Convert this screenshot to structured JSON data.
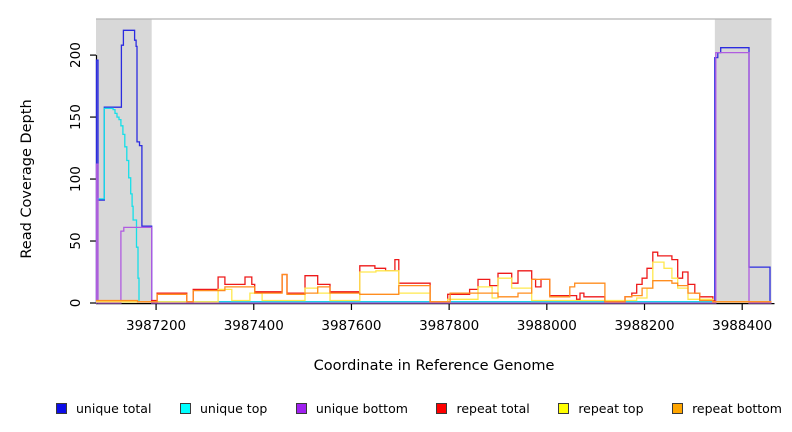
{
  "figure": {
    "xlabel": "Coordinate in Reference Genome",
    "ylabel": "Read Coverage Depth"
  },
  "legend": {
    "items": [
      {
        "label": "unique total",
        "color": "#0d0de8"
      },
      {
        "label": "unique top",
        "color": "#00ffff"
      },
      {
        "label": "unique bottom",
        "color": "#a020f0"
      },
      {
        "label": "repeat total",
        "color": "#ff0000"
      },
      {
        "label": "repeat top",
        "color": "#ffff00"
      },
      {
        "label": "repeat bottom",
        "color": "#ffa500"
      }
    ]
  },
  "chart_data": {
    "type": "line",
    "step": true,
    "title": "",
    "xlabel": "Coordinate in Reference Genome",
    "ylabel": "Read Coverage Depth",
    "xlim": [
      3987077,
      3988460
    ],
    "ylim": [
      0,
      229
    ],
    "x_ticks": [
      3987200,
      3987400,
      3987600,
      3987800,
      3988000,
      3988200,
      3988400
    ],
    "y_ticks": [
      0,
      50,
      100,
      150,
      200
    ],
    "grid": false,
    "legend_position": "bottom",
    "axis_color": "#000000",
    "band_color": "#d8d8d8",
    "band_top_line_color": "#b5b5b5",
    "shaded_regions": [
      {
        "name": "left-repeat-region",
        "x0": 3987077,
        "x1": 3987191
      },
      {
        "name": "right-repeat-region",
        "x0": 3988344,
        "x1": 3988460
      }
    ],
    "series": [
      {
        "name": "unique total",
        "color": "#2b2be0",
        "points": [
          [
            3987077,
            0
          ],
          [
            3987078,
            196
          ],
          [
            3987081,
            83
          ],
          [
            3987094,
            158
          ],
          [
            3987129,
            208
          ],
          [
            3987133,
            220
          ],
          [
            3987152,
            220
          ],
          [
            3987156,
            212
          ],
          [
            3987159,
            207
          ],
          [
            3987161,
            130
          ],
          [
            3987166,
            127
          ],
          [
            3987171,
            62
          ],
          [
            3987191,
            1
          ],
          [
            3988344,
            198
          ],
          [
            3988350,
            202
          ],
          [
            3988356,
            206
          ],
          [
            3988414,
            29
          ],
          [
            3988457,
            1
          ],
          [
            3988460,
            1
          ]
        ]
      },
      {
        "name": "unique top",
        "color": "#16dfe8",
        "points": [
          [
            3987077,
            84
          ],
          [
            3987094,
            157
          ],
          [
            3987112,
            156
          ],
          [
            3987116,
            153
          ],
          [
            3987120,
            150
          ],
          [
            3987124,
            148
          ],
          [
            3987128,
            143
          ],
          [
            3987132,
            136
          ],
          [
            3987136,
            126
          ],
          [
            3987140,
            115
          ],
          [
            3987144,
            101
          ],
          [
            3987148,
            88
          ],
          [
            3987151,
            78
          ],
          [
            3987153,
            67
          ],
          [
            3987158,
            67
          ],
          [
            3987160,
            45
          ],
          [
            3987163,
            20
          ],
          [
            3987165,
            1
          ],
          [
            3988460,
            1
          ]
        ]
      },
      {
        "name": "unique bottom",
        "color": "#b05ce0",
        "points": [
          [
            3987077,
            0
          ],
          [
            3987078,
            112
          ],
          [
            3987081,
            0
          ],
          [
            3987128,
            58
          ],
          [
            3987134,
            61
          ],
          [
            3987191,
            0
          ],
          [
            3988346,
            202
          ],
          [
            3988414,
            0
          ],
          [
            3988460,
            0
          ]
        ]
      },
      {
        "name": "repeat total",
        "color": "#ee1a1a",
        "points": [
          [
            3987077,
            1
          ],
          [
            3987191,
            2
          ],
          [
            3987202,
            8
          ],
          [
            3987263,
            1
          ],
          [
            3987276,
            11
          ],
          [
            3987327,
            21
          ],
          [
            3987341,
            15
          ],
          [
            3987382,
            21
          ],
          [
            3987396,
            15
          ],
          [
            3987402,
            9
          ],
          [
            3987458,
            23
          ],
          [
            3987468,
            8
          ],
          [
            3987505,
            22
          ],
          [
            3987531,
            15
          ],
          [
            3987556,
            9
          ],
          [
            3987617,
            30
          ],
          [
            3987648,
            28
          ],
          [
            3987670,
            26
          ],
          [
            3987689,
            35
          ],
          [
            3987697,
            16
          ],
          [
            3987761,
            1
          ],
          [
            3987797,
            7
          ],
          [
            3987842,
            11
          ],
          [
            3987859,
            19
          ],
          [
            3987883,
            14
          ],
          [
            3987900,
            24
          ],
          [
            3987928,
            16
          ],
          [
            3987941,
            26
          ],
          [
            3987969,
            19
          ],
          [
            3987977,
            13
          ],
          [
            3987988,
            19
          ],
          [
            3988006,
            6
          ],
          [
            3988061,
            3
          ],
          [
            3988068,
            8
          ],
          [
            3988076,
            5
          ],
          [
            3988119,
            1
          ],
          [
            3988160,
            5
          ],
          [
            3988174,
            8
          ],
          [
            3988184,
            15
          ],
          [
            3988195,
            20
          ],
          [
            3988205,
            28
          ],
          [
            3988217,
            41
          ],
          [
            3988227,
            38
          ],
          [
            3988256,
            35
          ],
          [
            3988268,
            20
          ],
          [
            3988278,
            25
          ],
          [
            3988289,
            15
          ],
          [
            3988303,
            8
          ],
          [
            3988313,
            5
          ],
          [
            3988340,
            2
          ],
          [
            3988344,
            1
          ],
          [
            3988460,
            1
          ]
        ]
      },
      {
        "name": "repeat top",
        "color": "#ffe84d",
        "points": [
          [
            3987077,
            1
          ],
          [
            3987327,
            11
          ],
          [
            3987355,
            2
          ],
          [
            3987392,
            8
          ],
          [
            3987417,
            2
          ],
          [
            3987505,
            12
          ],
          [
            3987531,
            8
          ],
          [
            3987556,
            2
          ],
          [
            3987617,
            25
          ],
          [
            3987650,
            26
          ],
          [
            3987697,
            8
          ],
          [
            3987761,
            1
          ],
          [
            3987797,
            3
          ],
          [
            3987859,
            13
          ],
          [
            3987888,
            4
          ],
          [
            3987900,
            20
          ],
          [
            3987928,
            12
          ],
          [
            3987969,
            2
          ],
          [
            3988184,
            4
          ],
          [
            3988205,
            12
          ],
          [
            3988217,
            33
          ],
          [
            3988240,
            28
          ],
          [
            3988256,
            20
          ],
          [
            3988268,
            12
          ],
          [
            3988289,
            3
          ],
          [
            3988340,
            1
          ],
          [
            3988460,
            1
          ]
        ]
      },
      {
        "name": "repeat bottom",
        "color": "#ff8d1f",
        "points": [
          [
            3987077,
            2
          ],
          [
            3987162,
            1
          ],
          [
            3987202,
            7
          ],
          [
            3987263,
            1
          ],
          [
            3987276,
            10
          ],
          [
            3987341,
            13
          ],
          [
            3987402,
            8
          ],
          [
            3987458,
            23
          ],
          [
            3987468,
            7
          ],
          [
            3987505,
            8
          ],
          [
            3987531,
            13
          ],
          [
            3987556,
            8
          ],
          [
            3987617,
            7
          ],
          [
            3987697,
            14
          ],
          [
            3987761,
            1
          ],
          [
            3987802,
            8
          ],
          [
            3987859,
            8
          ],
          [
            3987900,
            5
          ],
          [
            3987941,
            8
          ],
          [
            3987969,
            19
          ],
          [
            3988006,
            5
          ],
          [
            3988047,
            13
          ],
          [
            3988057,
            16
          ],
          [
            3988119,
            1
          ],
          [
            3988160,
            5
          ],
          [
            3988174,
            6
          ],
          [
            3988195,
            12
          ],
          [
            3988217,
            18
          ],
          [
            3988256,
            16
          ],
          [
            3988268,
            14
          ],
          [
            3988289,
            8
          ],
          [
            3988313,
            2
          ],
          [
            3988340,
            1
          ],
          [
            3988460,
            1
          ]
        ]
      }
    ]
  }
}
